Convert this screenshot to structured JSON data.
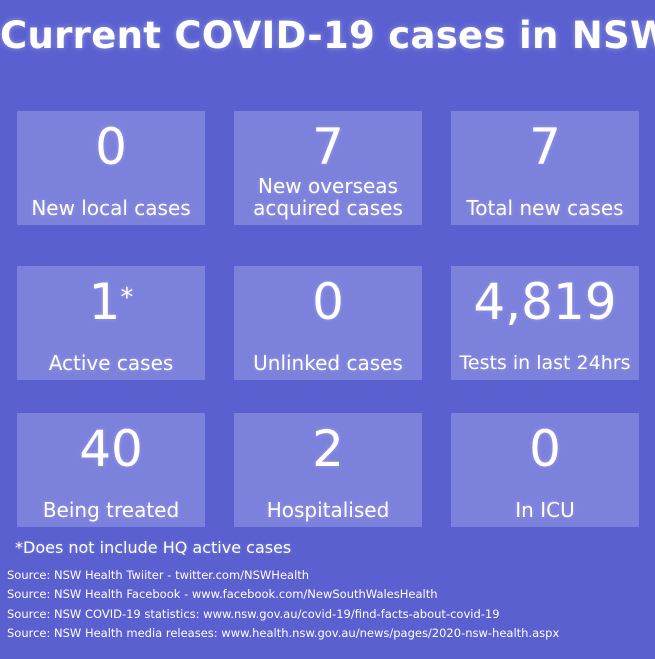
{
  "title": "Current COVID-19 cases in NSW",
  "tiles": [
    {
      "value": "0",
      "label": "New local cases"
    },
    {
      "value": "7",
      "label_line1": "New overseas",
      "label_line2": "acquired cases"
    },
    {
      "value": "7",
      "label": "Total new cases"
    },
    {
      "value": "1",
      "value_mark": "*",
      "label": "Active cases"
    },
    {
      "value": "0",
      "label": "Unlinked cases"
    },
    {
      "value": "4,819",
      "label": "Tests in last 24hrs"
    },
    {
      "value": "40",
      "label": "Being treated"
    },
    {
      "value": "2",
      "label": "Hospitalised"
    },
    {
      "value": "0",
      "label": "In ICU"
    }
  ],
  "footnote": "*Does not include HQ active cases",
  "sources": [
    "Source: NSW Health Twiiter - twitter.com/NSWHealth",
    "Source: NSW Health Facebook - www.facebook.com/NewSouthWalesHealth",
    "Source: NSW COVID-19 statistics: www.nsw.gov.au/covid-19/find-facts-about-covid-19",
    "Source: NSW Health media releases: www.health.nsw.gov.au/news/pages/2020-nsw-health.aspx"
  ]
}
